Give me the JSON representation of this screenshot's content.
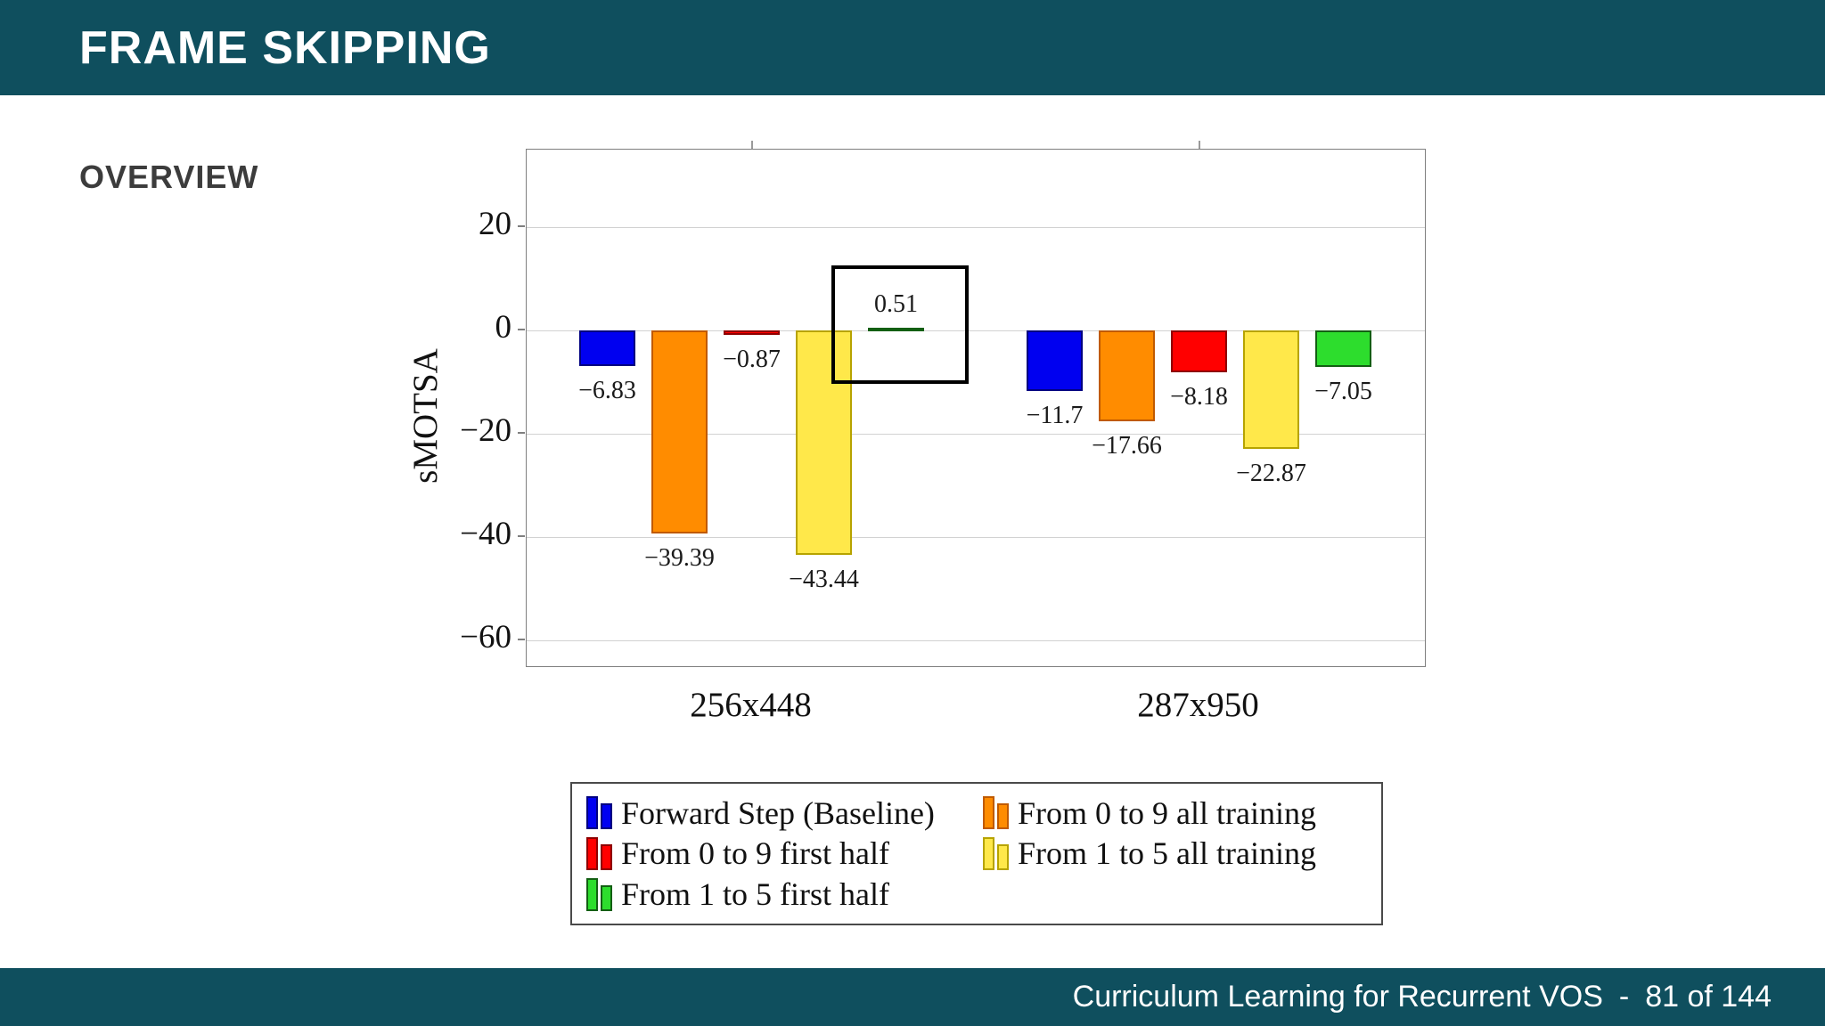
{
  "header": {
    "title": "FRAME SKIPPING"
  },
  "section_label": "OVERVIEW",
  "footer": {
    "text": "Curriculum Learning for Recurrent VOS",
    "separator": "-",
    "page": "81 of 144"
  },
  "colors": {
    "theme_teal": "#0f4f5e",
    "highlight_box": "#000000",
    "grid": "#d2d2d2",
    "plot_border": "#7f7f7f"
  },
  "chart_data": {
    "type": "bar",
    "title": "",
    "xlabel": "",
    "ylabel": "sMOTSA",
    "categories": [
      "256x448",
      "287x950"
    ],
    "yticks": [
      20,
      0,
      -20,
      -40,
      -60
    ],
    "ylim": [
      -65,
      35
    ],
    "grid": true,
    "legend_position": "below",
    "series": [
      {
        "name": "Forward Step (Baseline)",
        "color": "#0000f0",
        "border": "#000080",
        "values": [
          -6.83,
          -11.7
        ]
      },
      {
        "name": "From 0 to 9 all training",
        "color": "#ff8c00",
        "border": "#c05a00",
        "values": [
          -39.39,
          -17.66
        ]
      },
      {
        "name": "From 0 to 9 first half",
        "color": "#ff0000",
        "border": "#8e0000",
        "values": [
          -0.87,
          -8.18
        ]
      },
      {
        "name": "From 1 to 5 all training",
        "color": "#ffe84a",
        "border": "#b7a300",
        "values": [
          -43.44,
          -22.87
        ]
      },
      {
        "name": "From 1 to 5 first half",
        "color": "#2ddd2d",
        "border": "#135f13",
        "values": [
          0.51,
          -7.05
        ]
      }
    ],
    "highlight": {
      "series_index": 4,
      "category_index": 0
    }
  }
}
